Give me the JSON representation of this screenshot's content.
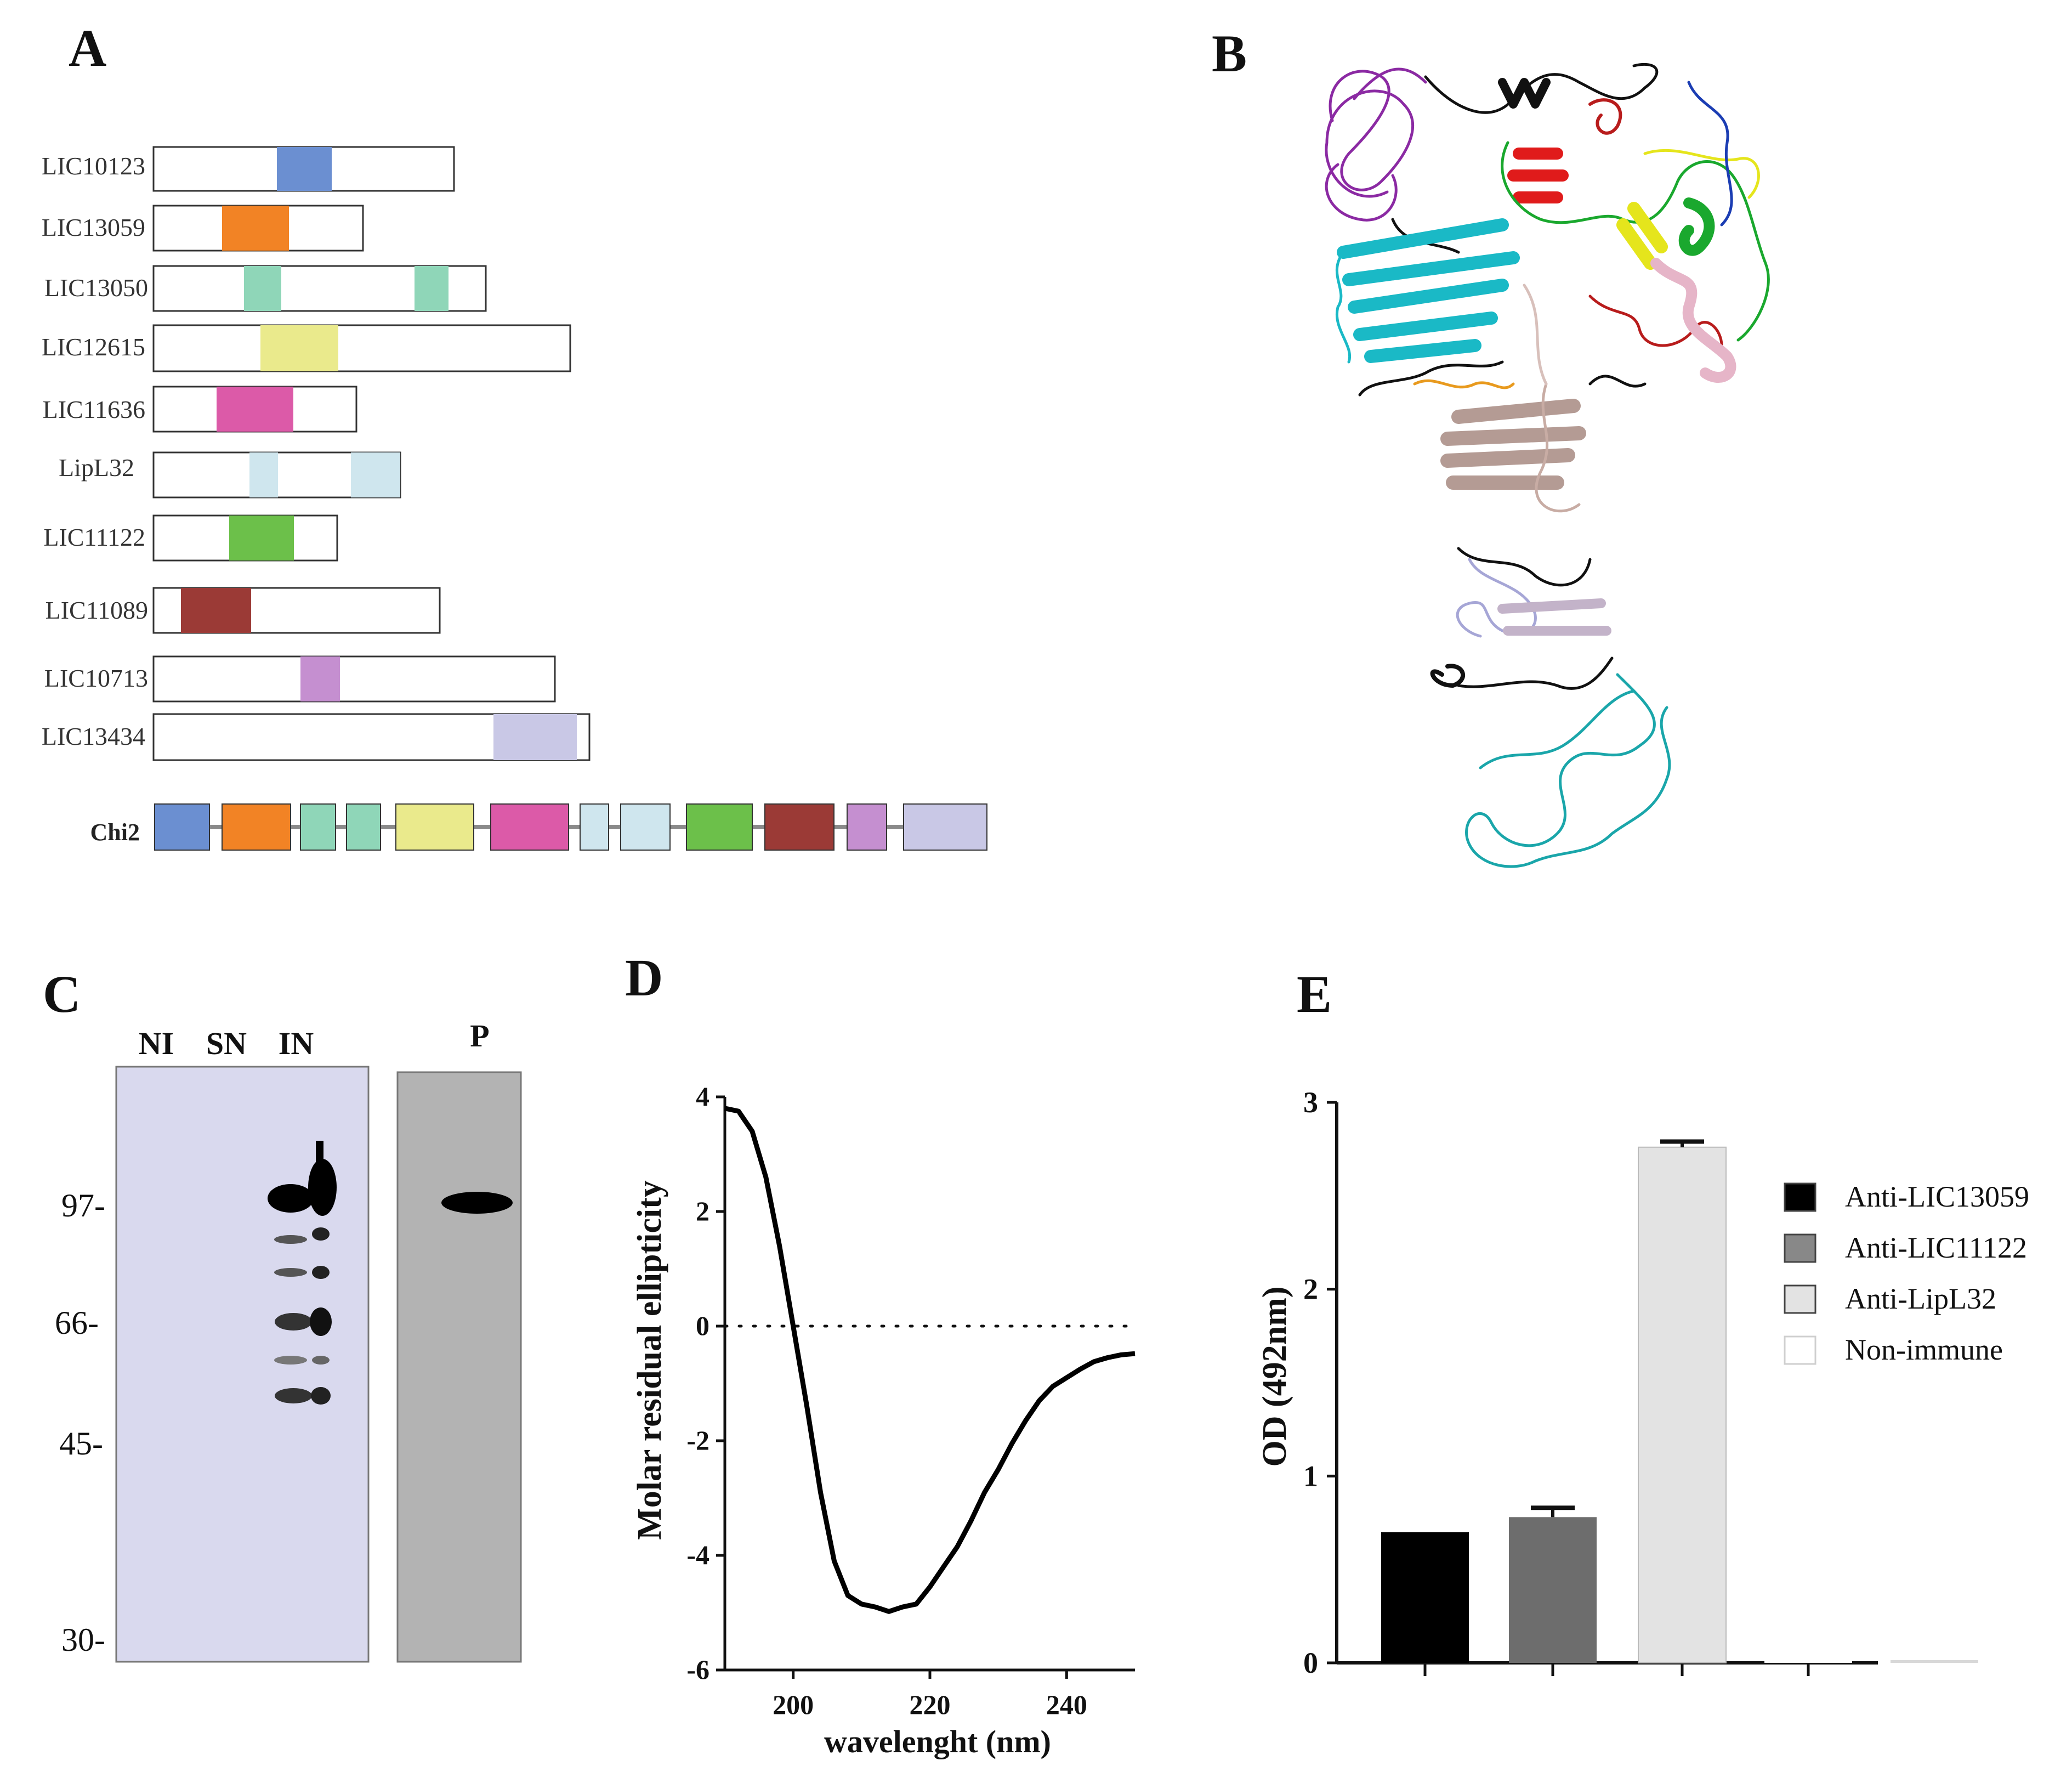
{
  "panels": {
    "a": "A",
    "b": "B",
    "c": "C",
    "d": "D",
    "e": "E"
  },
  "panel_a": {
    "genes": [
      {
        "name": "LIC10123",
        "color": "#6b8fd1"
      },
      {
        "name": "LIC13059",
        "color": "#f28325"
      },
      {
        "name": "LIC13050",
        "color": "#8fd6b8"
      },
      {
        "name": "LIC12615",
        "color": "#eaea8c"
      },
      {
        "name": "LIC11636",
        "color": "#dc5aa8"
      },
      {
        "name": "LipL32",
        "color": "#cfe6ee"
      },
      {
        "name": "LIC11122",
        "color": "#6cc04a"
      },
      {
        "name": "LIC11089",
        "color": "#9b3a36"
      },
      {
        "name": "LIC10713",
        "color": "#c58fd0"
      },
      {
        "name": "LIC13434",
        "color": "#c9c8e6"
      }
    ],
    "chimera_label": "Chi2"
  },
  "panel_b": {
    "structure": "Predicted 3D structure of Chi2 (ribbon model)"
  },
  "panel_c": {
    "lanes": [
      "NI",
      "SN",
      "IN"
    ],
    "lane_p": "P",
    "markers": [
      "97-",
      "66-",
      "45-",
      "30-"
    ]
  },
  "panel_d": {
    "chart_data": {
      "type": "line",
      "title": "",
      "xlabel": "wavelenght (nm)",
      "ylabel": "Molar residual ellipticity",
      "xlim": [
        190,
        250
      ],
      "ylim": [
        -6,
        4
      ],
      "xticks": [
        "200",
        "220",
        "240"
      ],
      "yticks": [
        "4",
        "2",
        "0",
        "-2",
        "-4",
        "-6"
      ],
      "x": [
        190,
        192,
        194,
        196,
        198,
        200,
        202,
        204,
        206,
        208,
        210,
        212,
        214,
        216,
        218,
        220,
        222,
        224,
        226,
        228,
        230,
        232,
        234,
        236,
        238,
        240,
        242,
        244,
        246,
        248,
        250
      ],
      "y": [
        3.8,
        3.75,
        3.4,
        2.6,
        1.4,
        0.0,
        -1.4,
        -2.9,
        -4.1,
        -4.7,
        -4.85,
        -4.9,
        -4.98,
        -4.9,
        -4.85,
        -4.55,
        -4.2,
        -3.85,
        -3.4,
        -2.9,
        -2.5,
        -2.05,
        -1.65,
        -1.3,
        -1.05,
        -0.9,
        -0.75,
        -0.62,
        -0.55,
        -0.5,
        -0.48
      ]
    }
  },
  "panel_e": {
    "chart_data": {
      "type": "bar",
      "ylabel": "OD (492nm)",
      "ylim": [
        0,
        3
      ],
      "yticks": [
        "0",
        "1",
        "2",
        "3"
      ],
      "categories": [
        "Anti-LIC13059",
        "Anti-LIC11122",
        "Anti-LipL32",
        "Non-immune",
        ""
      ],
      "values": [
        0.7,
        0.78,
        2.76,
        0.01,
        0.01
      ],
      "errors": [
        0.0,
        0.05,
        0.03,
        0.0,
        0.0
      ],
      "colors": [
        "#000000",
        "#6d6d6d",
        "#e3e3e3",
        "#ffffff",
        "#d8d8d8"
      ],
      "legend": [
        {
          "label": "Anti-LIC13059",
          "color": "#000000"
        },
        {
          "label": "Anti-LIC11122",
          "color": "#888888"
        },
        {
          "label": "Anti-LipL32",
          "color": "#e3e3e3"
        },
        {
          "label": "Non-immune",
          "color": "#ffffff"
        }
      ]
    }
  }
}
